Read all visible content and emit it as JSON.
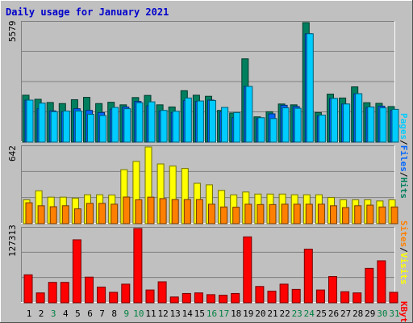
{
  "title": "Daily usage for January 2021",
  "colors": {
    "background": "#c0c0c0",
    "title": "#0000cc",
    "hits": "#007f5f",
    "files": "#0066ff",
    "pages": "#00ccff",
    "visits": "#ffff00",
    "sites": "#ff8000",
    "kbytes": "#ff0000",
    "weekday_label": "#000000",
    "weekend_label": "#008040",
    "grid": "#7f7f7f"
  },
  "chart_data": [
    {
      "type": "bar",
      "panel": "hits-files-pages",
      "ymax_label": "5579",
      "ylim": [
        0,
        5579
      ],
      "legend": [
        "Pages",
        "/",
        "Files",
        "/",
        "Hits"
      ],
      "x": [
        "1",
        "2",
        "3",
        "4",
        "5",
        "6",
        "7",
        "8",
        "9",
        "10",
        "11",
        "12",
        "13",
        "14",
        "15",
        "16",
        "17",
        "18",
        "19",
        "20",
        "21",
        "22",
        "23",
        "24",
        "25",
        "26",
        "27",
        "28",
        "29",
        "30",
        "31"
      ],
      "weekend_days": [
        "3",
        "9",
        "10",
        "16",
        "17",
        "23",
        "24",
        "30",
        "31"
      ],
      "series": [
        {
          "name": "Hits",
          "values": [
            2190,
            2000,
            1850,
            1800,
            1980,
            2090,
            1800,
            1860,
            1740,
            2080,
            2180,
            1740,
            1640,
            2400,
            2190,
            2140,
            1480,
            1360,
            3890,
            1180,
            1420,
            1780,
            1740,
            5579,
            1380,
            2240,
            2060,
            2580,
            1840,
            1810,
            1660
          ]
        },
        {
          "name": "Files",
          "values": [
            1960,
            1560,
            1460,
            1420,
            1560,
            1480,
            1380,
            1540,
            1640,
            1900,
            1700,
            1460,
            1380,
            1940,
            1900,
            1960,
            1420,
            1140,
            2600,
            1100,
            1320,
            1720,
            1660,
            5060,
            1220,
            2040,
            1780,
            2260,
            1620,
            1680,
            1480
          ]
        },
        {
          "name": "Pages",
          "values": [
            1960,
            1820,
            1420,
            1450,
            1450,
            1300,
            1240,
            1620,
            1560,
            1840,
            1880,
            1480,
            1440,
            2060,
            1920,
            1940,
            1620,
            1380,
            2600,
            1140,
            1100,
            1600,
            1580,
            5060,
            1260,
            2040,
            1780,
            2260,
            1640,
            1600,
            1530
          ]
        }
      ]
    },
    {
      "type": "bar",
      "panel": "visits-sites",
      "ymax_label": "642",
      "ylim": [
        0,
        642
      ],
      "legend": [
        "Sites",
        "/",
        "Visits"
      ],
      "x": [
        "1",
        "2",
        "3",
        "4",
        "5",
        "6",
        "7",
        "8",
        "9",
        "10",
        "11",
        "12",
        "13",
        "14",
        "15",
        "16",
        "17",
        "18",
        "19",
        "20",
        "21",
        "22",
        "23",
        "24",
        "25",
        "26",
        "27",
        "28",
        "29",
        "30",
        "31"
      ],
      "series": [
        {
          "name": "Visits",
          "values": [
            200,
            275,
            222,
            222,
            214,
            242,
            242,
            240,
            452,
            521,
            642,
            500,
            482,
            462,
            338,
            325,
            278,
            241,
            265,
            248,
            248,
            248,
            242,
            242,
            242,
            220,
            200,
            200,
            200,
            190,
            200
          ]
        },
        {
          "name": "Sites",
          "values": [
            175,
            150,
            142,
            150,
            124,
            170,
            170,
            163,
            223,
            200,
            222,
            210,
            202,
            202,
            202,
            163,
            140,
            138,
            163,
            160,
            160,
            163,
            163,
            163,
            163,
            150,
            135,
            150,
            155,
            140,
            140
          ]
        }
      ]
    },
    {
      "type": "bar",
      "panel": "kbytes",
      "ymax_label": "127313",
      "ylim": [
        0,
        127313
      ],
      "legend": [
        "KBytes"
      ],
      "x": [
        "1",
        "2",
        "3",
        "4",
        "5",
        "6",
        "7",
        "8",
        "9",
        "10",
        "11",
        "12",
        "13",
        "14",
        "15",
        "16",
        "17",
        "18",
        "19",
        "20",
        "21",
        "22",
        "23",
        "24",
        "25",
        "26",
        "27",
        "28",
        "29",
        "30",
        "31"
      ],
      "series": [
        {
          "name": "KBytes",
          "values": [
            48000,
            17000,
            35000,
            35000,
            108000,
            44000,
            27000,
            18000,
            32000,
            127313,
            22000,
            36000,
            10000,
            16000,
            17000,
            14000,
            13000,
            16000,
            113000,
            28000,
            20000,
            32000,
            23000,
            92000,
            22000,
            45000,
            19000,
            17000,
            59000,
            72000,
            18000
          ]
        }
      ]
    }
  ]
}
